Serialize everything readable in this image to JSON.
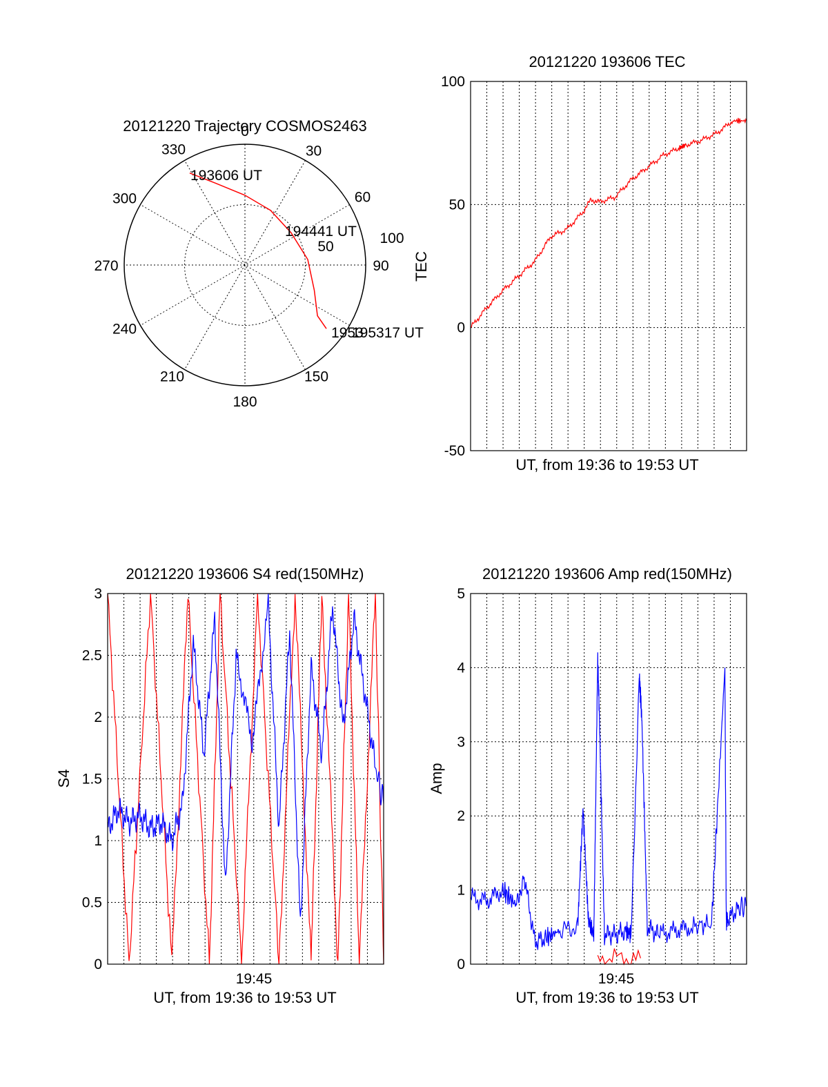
{
  "figure": {
    "background": "#ffffff"
  },
  "chart_data": [
    {
      "id": "trajectory",
      "type": "polar",
      "title": "20121220 Trajectory COSMOS2463",
      "azimuth_labels": [
        "0",
        "30",
        "60",
        "90",
        "150",
        "180",
        "210",
        "240",
        "270",
        "300",
        "330"
      ],
      "radius_labels": [
        "50",
        "100"
      ],
      "grid": true,
      "trajectory": {
        "color": "#ff0000",
        "points": [
          {
            "az": 329,
            "el": 10
          },
          {
            "az": 340,
            "el": 25
          },
          {
            "az": 0,
            "el": 38
          },
          {
            "az": 25,
            "el": 45
          },
          {
            "az": 55,
            "el": 48
          },
          {
            "az": 85,
            "el": 43
          },
          {
            "az": 110,
            "el": 35
          },
          {
            "az": 125,
            "el": 24
          },
          {
            "az": 128,
            "el": 13
          }
        ],
        "labels": [
          "193606 UT",
          "194441 UT",
          "195317 UT"
        ],
        "end_overlap_label": "1953"
      }
    },
    {
      "id": "tec",
      "type": "line",
      "title": "20121220 193606 TEC",
      "xlabel": "UT, from 19:36 to 19:53 UT",
      "ylabel": "TEC",
      "ylim": [
        -50,
        100
      ],
      "yticks": [
        "-50",
        "0",
        "50",
        "100"
      ],
      "xlim_seconds": [
        0,
        1031
      ],
      "grid": true,
      "series": [
        {
          "color": "#ff0000",
          "x": [
            0,
            60,
            120,
            180,
            240,
            300,
            360,
            420,
            450,
            480,
            540,
            600,
            660,
            720,
            780,
            800,
            860,
            920,
            980,
            1031
          ],
          "y": [
            0,
            8,
            15,
            21,
            27,
            37,
            40,
            47,
            52,
            51,
            53,
            60,
            65,
            70,
            73,
            74,
            76,
            79,
            84,
            84
          ]
        }
      ]
    },
    {
      "id": "s4",
      "type": "line",
      "title": "20121220 193606 S4 red(150MHz)",
      "xlabel": "UT, from 19:36 to 19:53 UT",
      "ylabel": "S4",
      "ylim": [
        0,
        3
      ],
      "yticks": [
        "0",
        "0.5",
        "1",
        "1.5",
        "2",
        "2.5",
        "3"
      ],
      "xtick_labels": [
        "19:45"
      ],
      "xlim_seconds": [
        0,
        1031
      ],
      "grid": true,
      "series": [
        {
          "color": "#ff0000",
          "x": [
            0,
            80,
            160,
            240,
            300,
            380,
            420,
            500,
            560,
            640,
            700,
            760,
            800,
            860,
            900,
            940,
            1000,
            1031
          ],
          "y": [
            3,
            0,
            3,
            0,
            3,
            0,
            3,
            0,
            3,
            0,
            3,
            0,
            3,
            0,
            3,
            0,
            3,
            0
          ]
        },
        {
          "color": "#0000ff",
          "x": [
            0,
            40,
            80,
            120,
            160,
            200,
            240,
            280,
            320,
            360,
            400,
            440,
            480,
            540,
            600,
            640,
            680,
            720,
            760,
            800,
            840,
            880,
            920,
            960,
            1000,
            1031
          ],
          "y": [
            1.1,
            1.25,
            1.15,
            1.2,
            1.1,
            1.15,
            1.0,
            1.3,
            2.6,
            1.7,
            2.8,
            0.6,
            2.5,
            1.8,
            2.9,
            1.1,
            2.7,
            0.3,
            2.4,
            1.7,
            2.9,
            1.9,
            2.8,
            2.2,
            1.6,
            1.3
          ]
        }
      ]
    },
    {
      "id": "amp",
      "type": "line",
      "title": "20121220 193606 Amp red(150MHz)",
      "xlabel": "UT, from 19:36 to 19:53 UT",
      "ylabel": "Amp",
      "ylim": [
        0,
        5
      ],
      "yticks": [
        "0",
        "1",
        "2",
        "3",
        "4",
        "5"
      ],
      "xtick_labels": [
        "19:45"
      ],
      "xlim_seconds": [
        0,
        1031
      ],
      "grid": true,
      "series": [
        {
          "color": "#0000ff",
          "x": [
            0,
            60,
            120,
            170,
            200,
            240,
            280,
            330,
            400,
            420,
            440,
            460,
            475,
            480,
            500,
            540,
            580,
            600,
            630,
            640,
            660,
            700,
            760,
            820,
            900,
            950,
            955,
            960,
            1000,
            1031
          ],
          "y": [
            0.9,
            0.85,
            1.0,
            0.8,
            1.2,
            0.3,
            0.35,
            0.45,
            0.5,
            2.1,
            0.6,
            0.4,
            4.1,
            3.5,
            0.4,
            0.4,
            0.45,
            0.4,
            3.9,
            3.3,
            0.5,
            0.4,
            0.45,
            0.5,
            0.55,
            4.0,
            0.6,
            0.6,
            0.75,
            0.8
          ]
        },
        {
          "color": "#ff0000",
          "x": [
            475,
            635
          ],
          "y": [
            0.08,
            0.08
          ]
        }
      ]
    }
  ]
}
